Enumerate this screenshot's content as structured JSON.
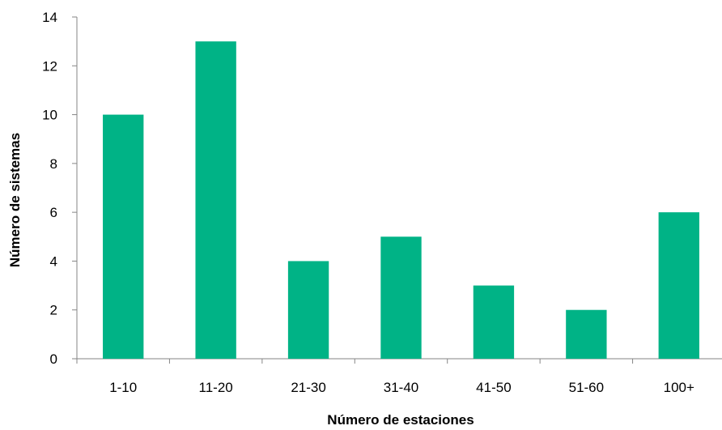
{
  "chart_data": {
    "type": "bar",
    "title": "",
    "xlabel": "Número de estaciones",
    "ylabel": "Número de sistemas",
    "categories": [
      "1-10",
      "11-20",
      "21-30",
      "31-40",
      "41-50",
      "51-60",
      "100+"
    ],
    "values": [
      10,
      13,
      4,
      5,
      3,
      2,
      6
    ],
    "ylim": [
      0,
      14
    ],
    "yticks": [
      "0",
      "2",
      "4",
      "6",
      "8",
      "10",
      "12",
      "14"
    ],
    "grid": false,
    "legend": "none",
    "bar_color": "#00B386"
  }
}
